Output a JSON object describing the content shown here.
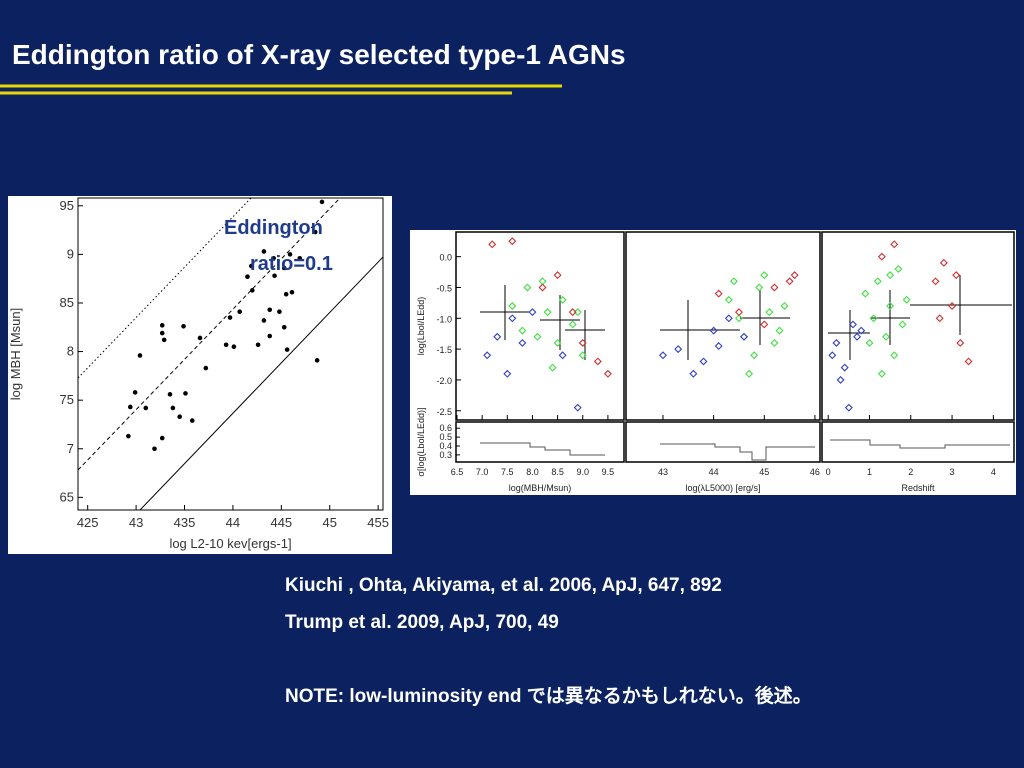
{
  "title": "Eddington ratio of X-ray selected type-1 AGNs",
  "references": [
    "Kiuchi , Ohta, Akiyama, et al. 2006, ApJ, 647, 892",
    "Trump et al. 2009, ApJ, 700, 49"
  ],
  "note": "NOTE: low-luminosity end では異なるかもしれない。後述。",
  "chart_data": [
    {
      "type": "scatter",
      "xlabel": "log L2-10 kev[ergs-1]",
      "ylabel": "log MBH [Msun]",
      "annotation": [
        "Eddington",
        "ratio=0.1"
      ],
      "xlim": [
        42.4,
        45.55
      ],
      "ylim": [
        6.37,
        9.58
      ],
      "xticks": [
        {
          "value": 42.5,
          "label": "425"
        },
        43,
        {
          "value": 43.5,
          "label": "435"
        },
        44,
        {
          "value": 44.5,
          "label": "445"
        },
        45,
        {
          "value": 45.5,
          "label": "455"
        }
      ],
      "yticks": [
        {
          "value": 6.5,
          "label": "65"
        },
        7,
        {
          "value": 7.5,
          "label": "75"
        },
        8,
        {
          "value": 8.5,
          "label": "85"
        },
        9,
        {
          "value": 9.5,
          "label": "95"
        }
      ],
      "series": [
        {
          "color": "#000000",
          "x": [
            44.92,
            44.85,
            44.32,
            44.42,
            44.59,
            44.19,
            44.53,
            44.69,
            44.15,
            44.43,
            44.55,
            44.61,
            44.2,
            44.38,
            44.48,
            43.97,
            44.07,
            44.32,
            44.53,
            43.27,
            43.27,
            43.29,
            43.49,
            43.66,
            43.93,
            44.01,
            44.26,
            44.38,
            44.56,
            44.87,
            43.04,
            43.72,
            42.99,
            42.94,
            43.1,
            43.35,
            43.51,
            43.38,
            43.45,
            43.58,
            42.92,
            43.27,
            43.19
          ],
          "values": [
            9.54,
            9.23,
            9.03,
            8.96,
            9.0,
            8.88,
            8.86,
            8.96,
            8.77,
            8.78,
            8.59,
            8.61,
            8.63,
            8.43,
            8.41,
            8.35,
            8.41,
            8.32,
            8.25,
            8.27,
            8.19,
            8.12,
            8.26,
            8.14,
            8.07,
            8.05,
            8.07,
            8.16,
            8.02,
            7.91,
            7.96,
            7.83,
            7.58,
            7.43,
            7.42,
            7.56,
            7.57,
            7.42,
            7.33,
            7.29,
            7.13,
            7.11,
            7.0
          ]
        }
      ]
    },
    {
      "type": "scatter",
      "xlabel": "log(MBH/Msun)",
      "ylabel": "log(Lbol/LEdd)",
      "lower_ylabel": "σ[log(Lbol/LEdd)]",
      "lower_ylim": [
        0.22,
        0.67
      ],
      "lower_yticks": [
        0.6,
        0.5,
        0.4,
        0.3
      ],
      "xlim": [
        6.48,
        9.82
      ],
      "ylim": [
        -2.65,
        0.4
      ],
      "xticks": [
        6.5,
        {
          "value": 7,
          "label": "7.0"
        },
        7.5,
        {
          "value": 8,
          "label": "8.0"
        },
        8.5,
        {
          "value": 9,
          "label": "9.0"
        },
        9.5
      ],
      "yticks": [
        {
          "value": 0,
          "label": "0.0"
        },
        -0.5,
        {
          "value": -1,
          "label": "-1.0"
        },
        -1.5,
        {
          "value": -2,
          "label": "-2.0"
        },
        -2.5
      ],
      "series": [
        {
          "color": "#40e040",
          "x": [
            7.6,
            7.9,
            8.1,
            8.3,
            8.5,
            8.6,
            8.8,
            9.0,
            8.2,
            7.8,
            8.4,
            8.9
          ],
          "values": [
            -0.8,
            -0.5,
            -1.3,
            -0.9,
            -1.4,
            -0.7,
            -1.1,
            -1.6,
            -0.4,
            -1.2,
            -1.8,
            -0.9
          ]
        },
        {
          "color": "#d03030",
          "x": [
            7.2,
            7.6,
            8.5,
            8.8,
            9.0,
            9.3,
            8.2,
            9.5
          ],
          "values": [
            0.2,
            0.25,
            -0.3,
            -0.9,
            -1.4,
            -1.7,
            -0.5,
            -1.9
          ]
        },
        {
          "color": "#3040c0",
          "x": [
            7.1,
            7.3,
            7.6,
            7.8,
            8.0,
            7.5,
            8.9,
            8.6
          ],
          "values": [
            -1.6,
            -1.3,
            -1.0,
            -1.4,
            -0.9,
            -1.9,
            -2.45,
            -1.6
          ]
        }
      ]
    },
    {
      "type": "scatter",
      "xlabel": "log(λL5000) [erg/s]",
      "xlim": [
        42.27,
        46.1
      ],
      "ylim": [
        -2.65,
        0.4
      ],
      "xticks": [
        43,
        44,
        45,
        46
      ],
      "series": [
        {
          "color": "#40e040",
          "x": [
            44.3,
            44.6,
            44.9,
            45.1,
            45.3,
            44.8,
            45.0,
            44.5,
            45.4,
            44.7,
            45.2,
            44.4
          ],
          "values": [
            -0.7,
            -1.3,
            -0.5,
            -0.9,
            -1.2,
            -1.6,
            -0.3,
            -1.0,
            -0.8,
            -1.9,
            -1.4,
            -0.4
          ]
        },
        {
          "color": "#d03030",
          "x": [
            44.1,
            44.5,
            45.2,
            45.5,
            45.0,
            45.6
          ],
          "values": [
            -0.6,
            -0.9,
            -0.5,
            -0.4,
            -1.1,
            -0.3
          ]
        },
        {
          "color": "#3040c0",
          "x": [
            43.0,
            43.3,
            43.6,
            44.0,
            44.3,
            44.6,
            43.8,
            44.1
          ],
          "values": [
            -1.6,
            -1.5,
            -1.9,
            -1.2,
            -1.0,
            -1.3,
            -1.7,
            -1.45
          ]
        }
      ]
    },
    {
      "type": "scatter",
      "xlabel": "Redshift",
      "xlim": [
        -0.15,
        4.5
      ],
      "ylim": [
        -2.65,
        0.4
      ],
      "xticks": [
        0,
        1,
        2,
        3,
        4
      ],
      "series": [
        {
          "color": "#40e040",
          "x": [
            0.9,
            1.1,
            1.2,
            1.4,
            1.5,
            1.6,
            1.7,
            1.8,
            1.3,
            1.0,
            1.9,
            1.5
          ],
          "values": [
            -0.6,
            -1.0,
            -0.4,
            -1.3,
            -0.8,
            -1.6,
            -0.2,
            -1.1,
            -1.9,
            -1.4,
            -0.7,
            -0.3
          ]
        },
        {
          "color": "#d03030",
          "x": [
            2.6,
            2.8,
            3.0,
            3.2,
            3.4,
            2.7,
            3.1,
            1.3,
            1.6
          ],
          "values": [
            -0.4,
            -0.1,
            -0.8,
            -1.4,
            -1.7,
            -1.0,
            -0.3,
            0.0,
            0.2
          ]
        },
        {
          "color": "#3040c0",
          "x": [
            0.1,
            0.2,
            0.4,
            0.6,
            0.8,
            0.3,
            0.5,
            0.7
          ],
          "values": [
            -1.6,
            -1.4,
            -1.8,
            -1.1,
            -1.2,
            -2.0,
            -2.45,
            -1.3
          ]
        }
      ]
    }
  ]
}
